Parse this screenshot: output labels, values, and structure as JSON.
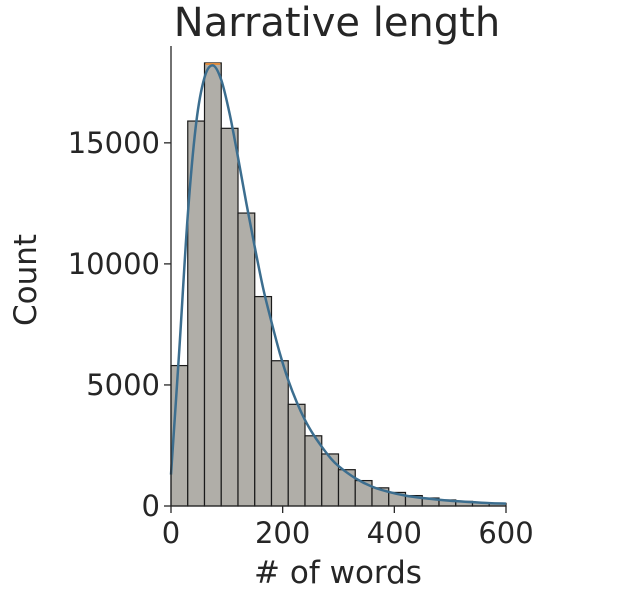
{
  "chart_data": {
    "type": "bar",
    "title": "Narrative length",
    "xlabel": "# of words",
    "ylabel": "Count",
    "xlim": [
      0,
      600
    ],
    "ylim": [
      0,
      19000
    ],
    "xticks": [
      "0",
      "200",
      "400",
      "600"
    ],
    "yticks": [
      "0",
      "5000",
      "10000",
      "15000"
    ],
    "grid": false,
    "bin_width": 30,
    "bins": [
      {
        "x0": 0,
        "x1": 30,
        "count": 5800
      },
      {
        "x0": 30,
        "x1": 60,
        "count": 15900
      },
      {
        "x0": 60,
        "x1": 90,
        "count": 18300
      },
      {
        "x0": 90,
        "x1": 120,
        "count": 15600
      },
      {
        "x0": 120,
        "x1": 150,
        "count": 12100
      },
      {
        "x0": 150,
        "x1": 180,
        "count": 8650
      },
      {
        "x0": 180,
        "x1": 210,
        "count": 6000
      },
      {
        "x0": 210,
        "x1": 240,
        "count": 4200
      },
      {
        "x0": 240,
        "x1": 270,
        "count": 2900
      },
      {
        "x0": 270,
        "x1": 300,
        "count": 2150
      },
      {
        "x0": 300,
        "x1": 330,
        "count": 1500
      },
      {
        "x0": 330,
        "x1": 360,
        "count": 1050
      },
      {
        "x0": 360,
        "x1": 390,
        "count": 750
      },
      {
        "x0": 390,
        "x1": 420,
        "count": 560
      },
      {
        "x0": 420,
        "x1": 450,
        "count": 430
      },
      {
        "x0": 450,
        "x1": 480,
        "count": 330
      },
      {
        "x0": 480,
        "x1": 510,
        "count": 250
      },
      {
        "x0": 510,
        "x1": 540,
        "count": 190
      },
      {
        "x0": 540,
        "x1": 570,
        "count": 140
      },
      {
        "x0": 570,
        "x1": 600,
        "count": 110
      }
    ],
    "kde": {
      "x": [
        0,
        15,
        30,
        45,
        60,
        75,
        90,
        105,
        120,
        135,
        150,
        165,
        180,
        195,
        210,
        225,
        240,
        255,
        270,
        285,
        300,
        330,
        360,
        390,
        420,
        450,
        480,
        510,
        540,
        570,
        600
      ],
      "y": [
        1300,
        6500,
        12000,
        15800,
        17700,
        18200,
        17600,
        16200,
        14400,
        12500,
        10700,
        9000,
        7600,
        6300,
        5200,
        4300,
        3550,
        2950,
        2450,
        2000,
        1650,
        1150,
        800,
        580,
        430,
        330,
        260,
        200,
        160,
        120,
        100
      ]
    },
    "colors": {
      "bar_fill": "#b0aea8",
      "bar_edge": "#1a1a1a",
      "kde_line": "#3c6e8f",
      "highlight_bar_edge": "#e08a3a"
    }
  }
}
